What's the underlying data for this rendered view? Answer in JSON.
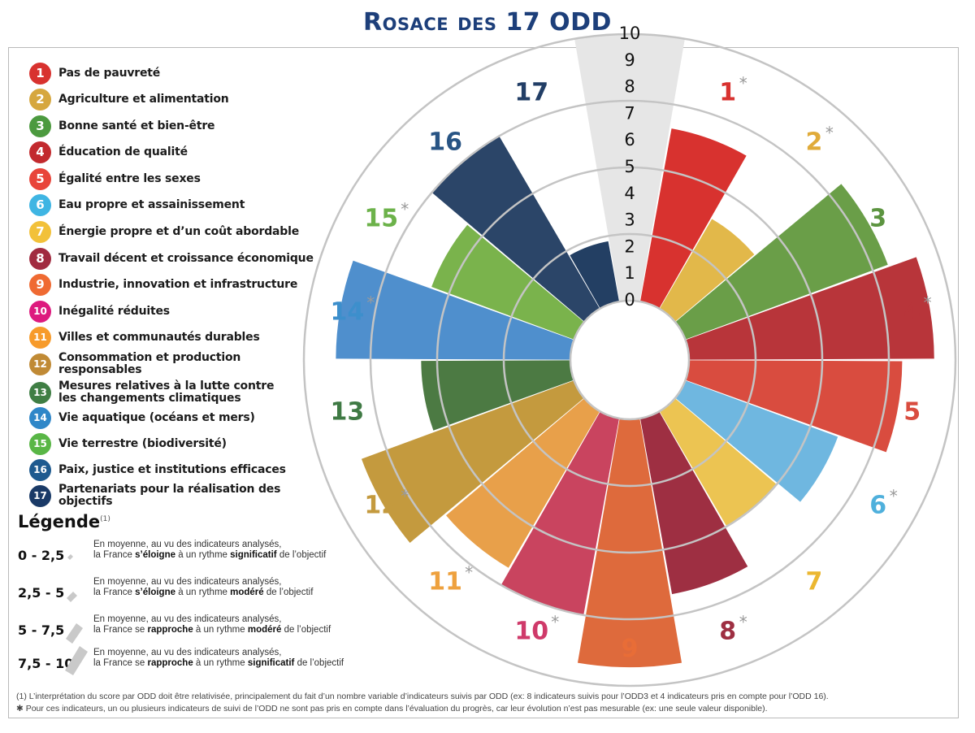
{
  "title": "Rosace des 17 ODD",
  "goals": [
    {
      "num": "1",
      "label": "Pas de pauvreté",
      "color": "#d8322f"
    },
    {
      "num": "2",
      "label": "Agriculture et alimentation",
      "color": "#d6a73f"
    },
    {
      "num": "3",
      "label": "Bonne santé et bien-être",
      "color": "#4c9a3f"
    },
    {
      "num": "4",
      "label": "Éducation de qualité",
      "color": "#c22a2e"
    },
    {
      "num": "5",
      "label": "Égalité entre les sexes",
      "color": "#e8443a"
    },
    {
      "num": "6",
      "label": "Eau propre et assainissement",
      "color": "#3fb5e3"
    },
    {
      "num": "7",
      "label": "Énergie propre et d’un coût abordable",
      "color": "#f2c13a"
    },
    {
      "num": "8",
      "label": "Travail décent et croissance économique",
      "color": "#a12b40"
    },
    {
      "num": "9",
      "label": "Industrie, innovation et infrastructure",
      "color": "#ef6a32"
    },
    {
      "num": "10",
      "label": "Inégalité réduites",
      "color": "#dd1a7e"
    },
    {
      "num": "11",
      "label": "Villes et communautés durables",
      "color": "#f79b2b"
    },
    {
      "num": "12",
      "label": "Consommation et production responsables",
      "color": "#c08a35"
    },
    {
      "num": "13",
      "label": "Mesures relatives à la lutte contre",
      "label2": "les changements climatiques",
      "color": "#3f7e44"
    },
    {
      "num": "14",
      "label": "Vie aquatique (océans et mers)",
      "color": "#2f87c8"
    },
    {
      "num": "15",
      "label": "Vie terrestre (biodiversité)",
      "color": "#59b646"
    },
    {
      "num": "16",
      "label": "Paix, justice et institutions efficaces",
      "color": "#1e5a8f"
    },
    {
      "num": "17",
      "label": "Partenariats pour la réalisation des objectifs",
      "color": "#1a3a67"
    }
  ],
  "legend": {
    "title": "Légende",
    "note_mark": "(1)",
    "rows": [
      {
        "range": "0 - 2,5",
        "line1": "En moyenne, au vu des indicateurs analysés,",
        "pre": "la France ",
        "verb": "s’éloigne",
        "mid": " à un rythme ",
        "pace": "significatif",
        "post": " de l’objectif"
      },
      {
        "range": "2,5 - 5",
        "line1": "En moyenne, au vu des indicateurs analysés,",
        "pre": "la France ",
        "verb": "s’éloigne",
        "mid": " à un rythme ",
        "pace": "modéré",
        "post": " de l’objectif"
      },
      {
        "range": "5 - 7,5",
        "line1": "En moyenne, au vu des indicateurs analysés,",
        "pre": "la France se ",
        "verb": "rapproche",
        "mid": " à un rythme ",
        "pace": "modéré",
        "post": " de l’objectif"
      },
      {
        "range": "7,5 - 10",
        "line1": "En moyenne, au vu des indicateurs analysés,",
        "pre": "la France se ",
        "verb": "rapproche",
        "mid": " à un rythme ",
        "pace": "significatif",
        "post": " de l’objectif"
      }
    ]
  },
  "footnotes": {
    "note1": "(1) L’interprétation du score par ODD  doit être relativisée, principalement du fait d’un nombre variable d’indicateurs suivis par ODD (ex: 8 indicateurs suivis pour l’ODD3 et 4 indicateurs pris en compte pour l’ODD 16).",
    "note2": "✱ Pour ces indicateurs, un ou plusieurs indicateurs de suivi de l’ODD ne sont pas pris en compte dans l’évaluation du progrès, car leur évolution n’est pas mesurable (ex: une seule valeur disponible)."
  },
  "chart_data": {
    "type": "polar-bar",
    "title": "Rosace des 17 ODD",
    "scale_labels": [
      "0",
      "1",
      "2",
      "3",
      "4",
      "5",
      "6",
      "7",
      "8",
      "9",
      "10"
    ],
    "r_range": [
      0,
      10
    ],
    "categories": [
      "1",
      "2",
      "3",
      "4",
      "5",
      "6",
      "7",
      "8",
      "9",
      "10",
      "11",
      "12",
      "13",
      "14",
      "15",
      "16",
      "17"
    ],
    "values": [
      6.6,
      3.9,
      8.1,
      9.2,
      8.0,
      6.1,
      5.0,
      6.7,
      9.3,
      7.5,
      6.8,
      8.5,
      5.6,
      8.8,
      5.7,
      7.5,
      2.3
    ],
    "asterisk": [
      true,
      true,
      false,
      true,
      false,
      true,
      false,
      true,
      false,
      true,
      true,
      true,
      false,
      true,
      true,
      false,
      false
    ],
    "bar_colors": [
      "#d8322f",
      "#e2b84a",
      "#6a9e48",
      "#b8353a",
      "#d94c3f",
      "#6fb7e0",
      "#ecc452",
      "#9e2f42",
      "#de6a3c",
      "#c9445f",
      "#e8a04a",
      "#c49a3e",
      "#4c7a43",
      "#4f8fcd",
      "#7ab34c",
      "#2b4568",
      "#233f63"
    ],
    "label_colors": [
      "#d8322f",
      "#e0ab3a",
      "#5c9440",
      "#b8353a",
      "#d94c3f",
      "#4fb0dc",
      "#ebb731",
      "#9e2f42",
      "#e86d37",
      "#cf3a6a",
      "#eea13e",
      "#c49a3e",
      "#3f7a44",
      "#3d8fcc",
      "#6cb24a",
      "#285484",
      "#223e66"
    ],
    "max_marker": {
      "value": 10,
      "fill": "#e6e6e6"
    }
  }
}
